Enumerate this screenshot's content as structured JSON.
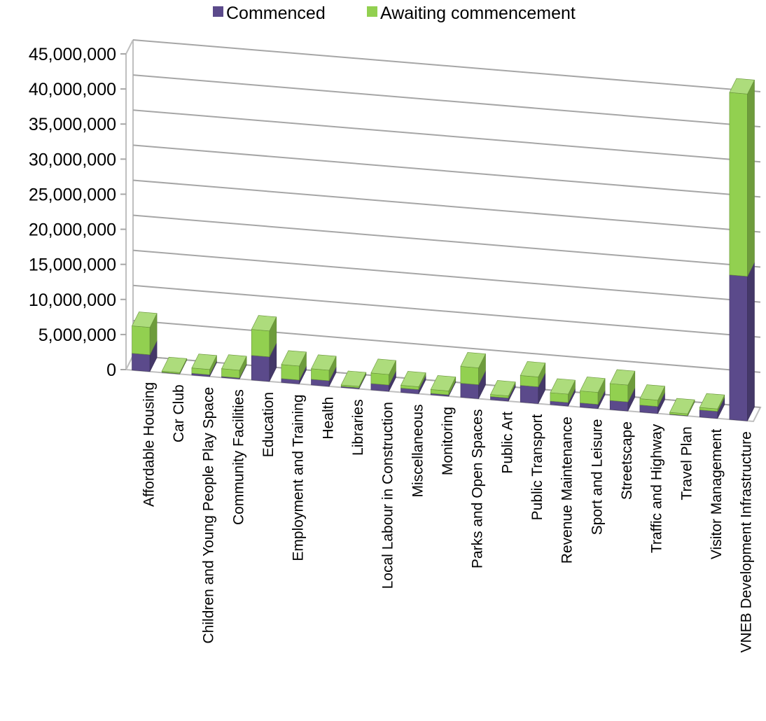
{
  "chart_data": {
    "type": "bar",
    "stacked": true,
    "three_d": true,
    "title": "",
    "xlabel": "",
    "ylabel": "",
    "ylim": [
      0,
      45000000
    ],
    "y_ticks": [
      0,
      5000000,
      10000000,
      15000000,
      20000000,
      25000000,
      30000000,
      35000000,
      40000000,
      45000000
    ],
    "y_tick_labels": [
      "0",
      "5,000,000",
      "10,000,000",
      "15,000,000",
      "20,000,000",
      "25,000,000",
      "30,000,000",
      "35,000,000",
      "40,000,000",
      "45,000,000"
    ],
    "grid": true,
    "legend_position": "top",
    "categories": [
      "Affordable Housing",
      "Car Club",
      "Children and Young People Play Space",
      "Community Facilities",
      "Education",
      "Employment and Training",
      "Health",
      "Libraries",
      "Local Labour in Construction",
      "Miscellaneous",
      "Monitoring",
      "Parks and Open Spaces",
      "Public Art",
      "Public Transport",
      "Revenue Maintenance",
      "Sport and Leisure",
      "Streetscape",
      "Traffic and Highway",
      "Travel Plan",
      "Visitor Management",
      "VNEB Development Infrastructure"
    ],
    "series": [
      {
        "name": "Commenced",
        "color": "#5b4a8b",
        "values": [
          2400000,
          50000,
          250000,
          150000,
          3500000,
          550000,
          800000,
          150000,
          900000,
          600000,
          200000,
          2000000,
          450000,
          2400000,
          500000,
          600000,
          1300000,
          1000000,
          50000,
          1000000,
          20600000
        ]
      },
      {
        "name": "Awaiting commencement",
        "color": "#92d050",
        "values": [
          3900000,
          150000,
          750000,
          1100000,
          3700000,
          2000000,
          1500000,
          200000,
          1500000,
          400000,
          550000,
          2400000,
          300000,
          1400000,
          1200000,
          1700000,
          2400000,
          900000,
          250000,
          350000,
          26000000
        ]
      }
    ]
  }
}
